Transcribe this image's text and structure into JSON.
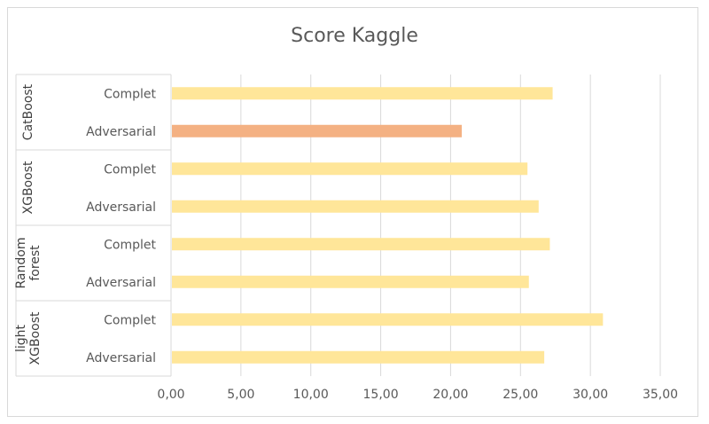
{
  "chart_data": {
    "type": "bar",
    "orientation": "horizontal",
    "title": "Score Kaggle",
    "xlim": [
      0,
      35
    ],
    "x_ticks": [
      "0,00",
      "5,00",
      "10,00",
      "15,00",
      "20,00",
      "25,00",
      "30,00",
      "35,00"
    ],
    "grid": true,
    "colors": {
      "default": "#FFE699",
      "highlight": "#F4B183",
      "grid": "#d9d9d9",
      "text": "#595959"
    },
    "groups": [
      {
        "label": "CatBoost",
        "label_lines": [
          "CatBoost"
        ],
        "bars": [
          {
            "category": "Complet",
            "value": 27.3,
            "highlight": false
          },
          {
            "category": "Adversarial",
            "value": 20.8,
            "highlight": true
          }
        ]
      },
      {
        "label": "XGBoost",
        "label_lines": [
          "XGBoost"
        ],
        "bars": [
          {
            "category": "Complet",
            "value": 25.5,
            "highlight": false
          },
          {
            "category": "Adversarial",
            "value": 26.3,
            "highlight": false
          }
        ]
      },
      {
        "label": "Random forest",
        "label_lines": [
          "Random",
          "forest"
        ],
        "bars": [
          {
            "category": "Complet",
            "value": 27.1,
            "highlight": false
          },
          {
            "category": "Adversarial",
            "value": 25.6,
            "highlight": false
          }
        ]
      },
      {
        "label": "light XGBoost",
        "label_lines": [
          "light",
          "XGBoost"
        ],
        "bars": [
          {
            "category": "Complet",
            "value": 30.9,
            "highlight": false
          },
          {
            "category": "Adversarial",
            "value": 26.7,
            "highlight": false
          }
        ]
      }
    ]
  }
}
